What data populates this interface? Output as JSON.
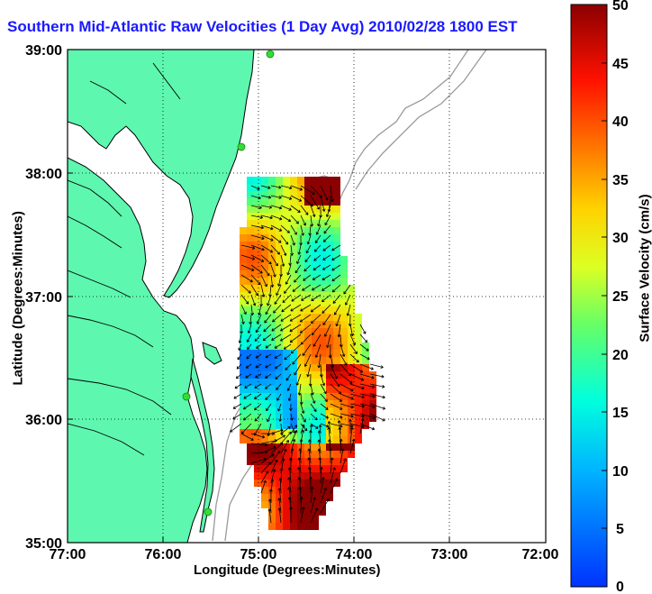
{
  "title": "Southern Mid-Atlantic Raw Velocities (1 Day Avg) 2010/02/28 1800 EST",
  "map": {
    "x_axis": {
      "label": "Longitude (Degrees:Minutes)",
      "ticks": [
        "77:00",
        "76:00",
        "75:00",
        "74:00",
        "73:00",
        "72:00"
      ]
    },
    "y_axis": {
      "label": "Latitude (Degrees:Minutes)",
      "ticks": [
        "39:00",
        "38:00",
        "37:00",
        "36:00",
        "35:00"
      ]
    },
    "lon_range": [
      -77,
      -72
    ],
    "lat_range": [
      35,
      39
    ],
    "grid": "dotted",
    "land_color": "#5ef7b0",
    "coast_color": "#000000",
    "bathymetry_color": "#9a9a9a",
    "station_color": "#33dd33"
  },
  "colorbar": {
    "label": "Surface Velocity (cm/s)",
    "min": 0,
    "max": 50,
    "ticks": [
      "50",
      "45",
      "40",
      "35",
      "30",
      "25",
      "20",
      "15",
      "10",
      "5",
      "0"
    ],
    "colormap": "jet"
  }
}
